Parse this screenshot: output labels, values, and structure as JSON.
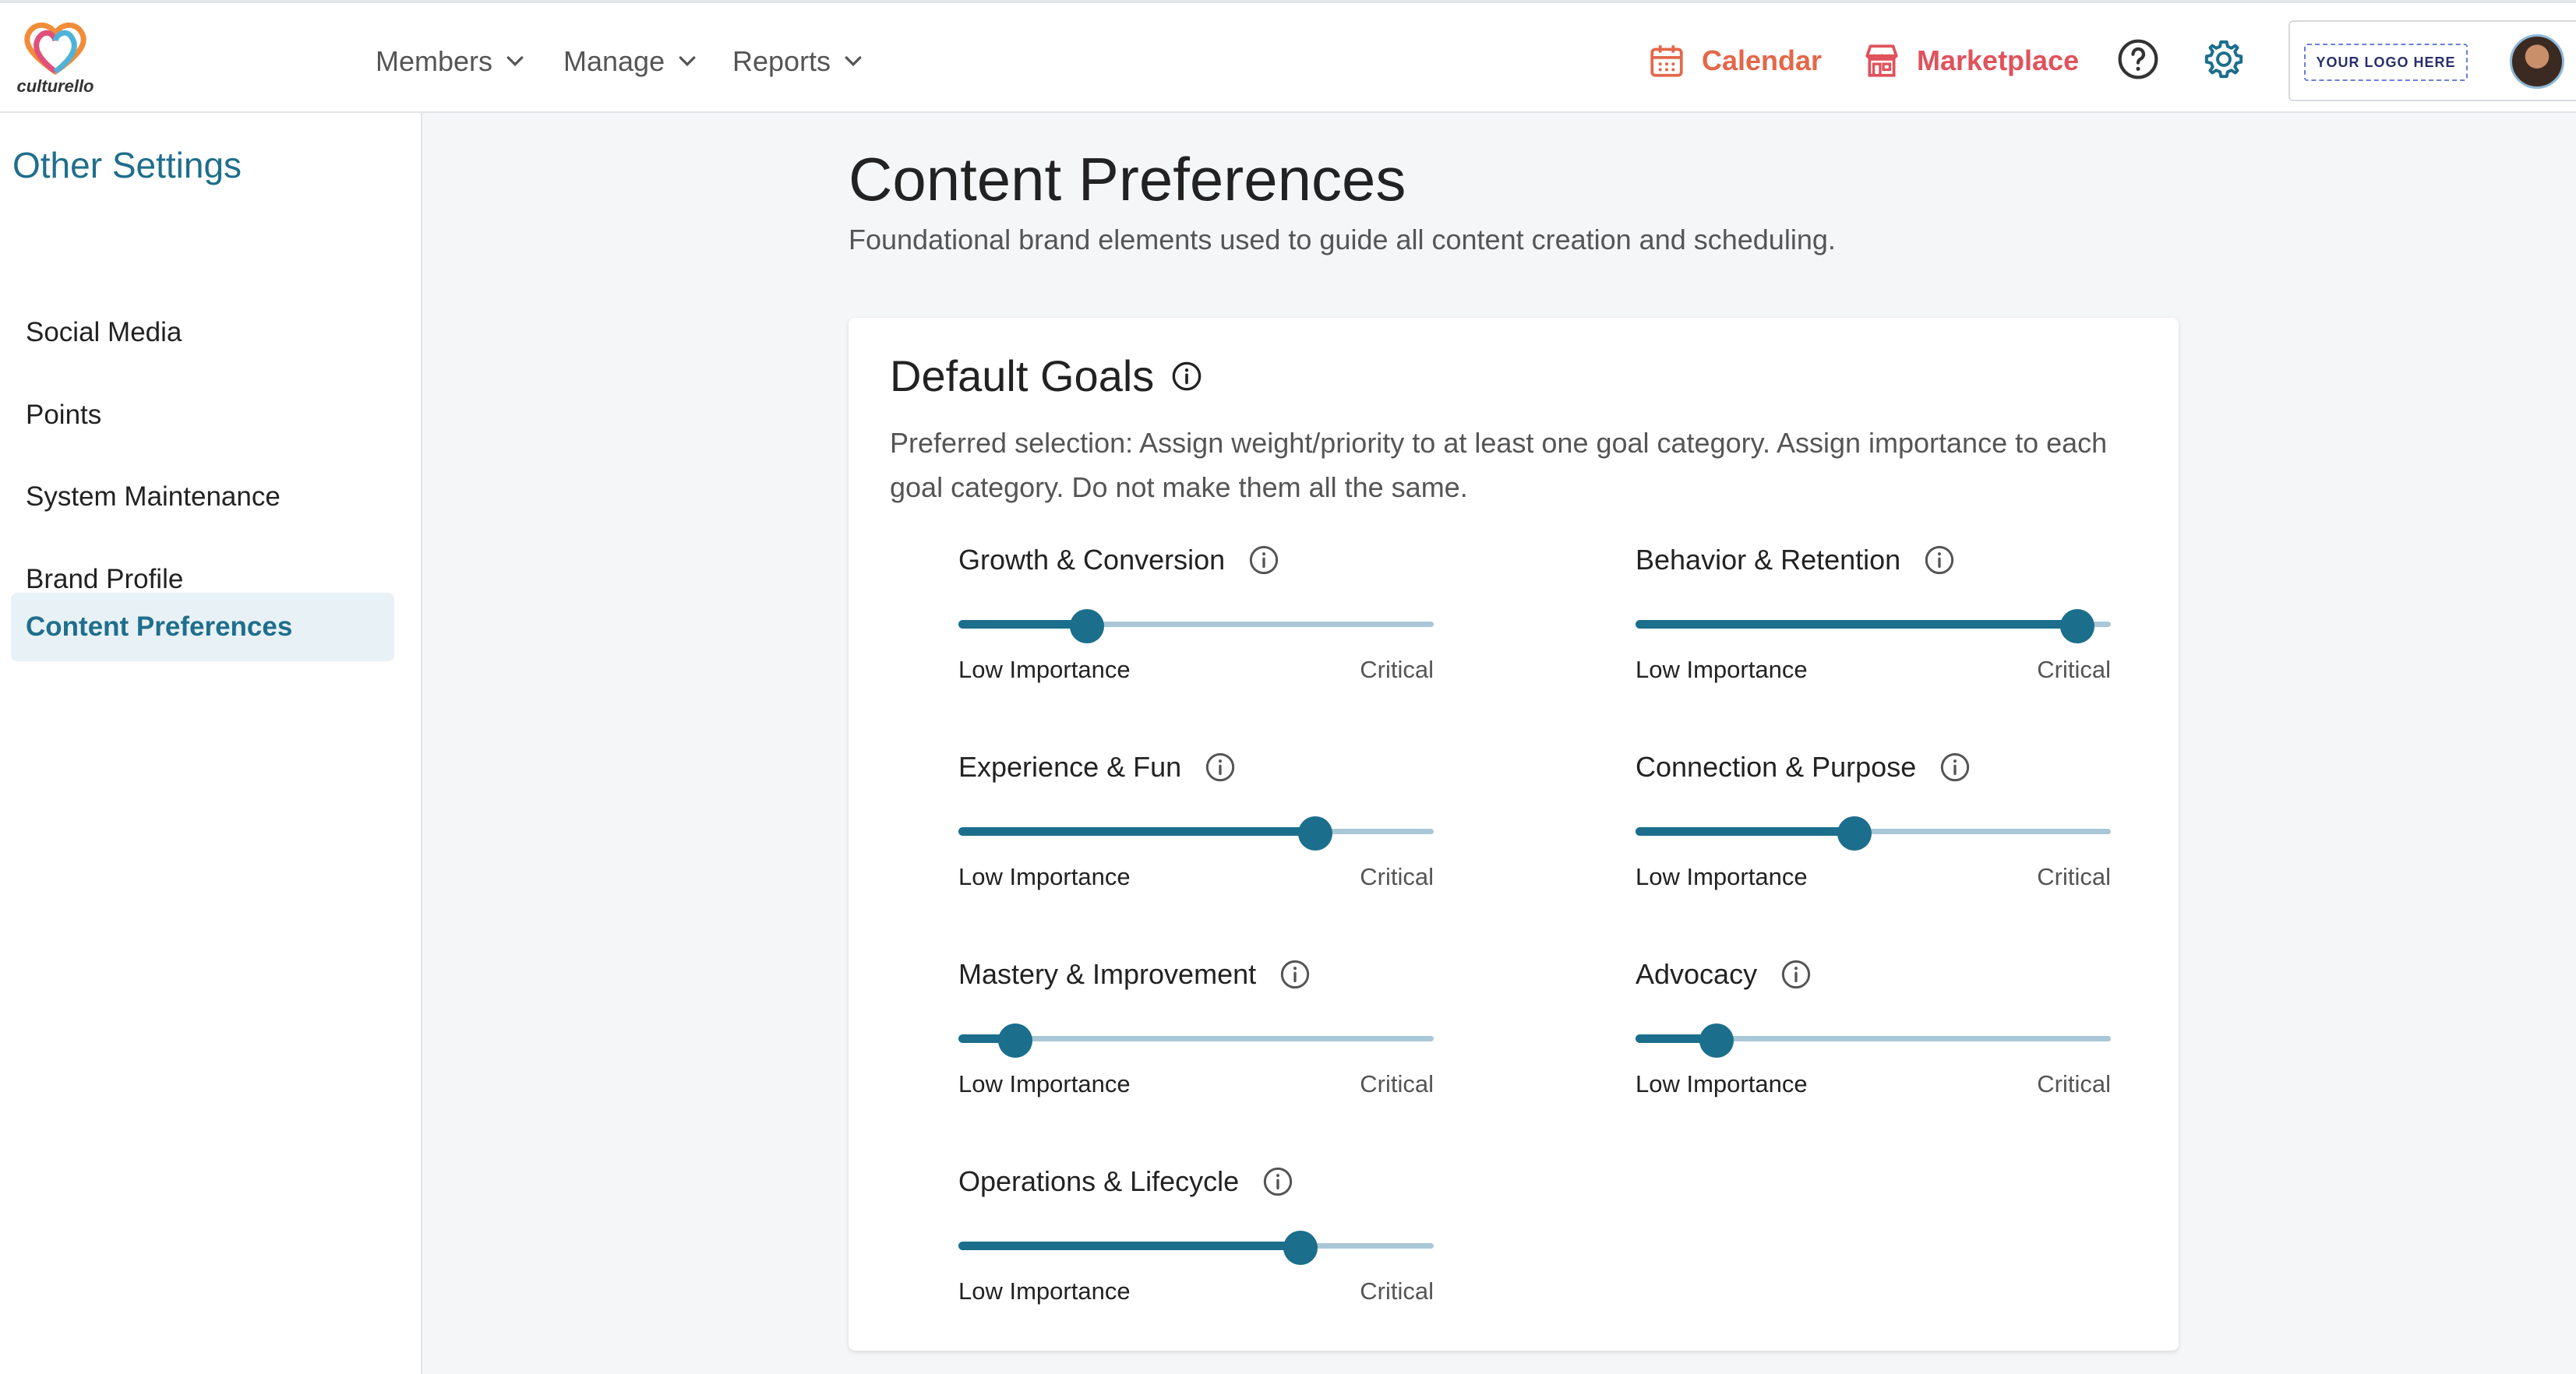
{
  "brand": {
    "name": "culturello"
  },
  "nav": {
    "members": "Members",
    "manage": "Manage",
    "reports": "Reports",
    "calendar": "Calendar",
    "marketplace": "Marketplace",
    "brand_logo_text": "YOUR LOGO HERE"
  },
  "sidebar": {
    "title": "Other Settings",
    "items": [
      {
        "label": "Social Media"
      },
      {
        "label": "Points"
      },
      {
        "label": "System Maintenance"
      },
      {
        "label": "Brand Profile"
      },
      {
        "label": "Content Preferences",
        "active": true
      }
    ]
  },
  "main": {
    "title": "Content Preferences",
    "subtitle": "Foundational brand elements used to guide all content creation and scheduling."
  },
  "card": {
    "title": "Default Goals",
    "description": "Preferred selection: Assign weight/priority to at least one goal category. Assign importance to each goal category. Do not make them all the same.",
    "scale_low": "Low Importance",
    "scale_high": "Critical",
    "goals": [
      {
        "name": "Growth & Conversion",
        "value": 0.27
      },
      {
        "name": "Behavior & Retention",
        "value": 0.93
      },
      {
        "name": "Experience & Fun",
        "value": 0.75
      },
      {
        "name": "Connection & Purpose",
        "value": 0.46
      },
      {
        "name": "Mastery & Improvement",
        "value": 0.12
      },
      {
        "name": "Advocacy",
        "value": 0.17
      },
      {
        "name": "Operations & Lifecycle",
        "value": 0.72
      }
    ]
  },
  "colors": {
    "accent": "#1b6e8c",
    "rail": "#a9c7d6",
    "calendar": "#e4674a",
    "marketplace": "#e0525c"
  }
}
